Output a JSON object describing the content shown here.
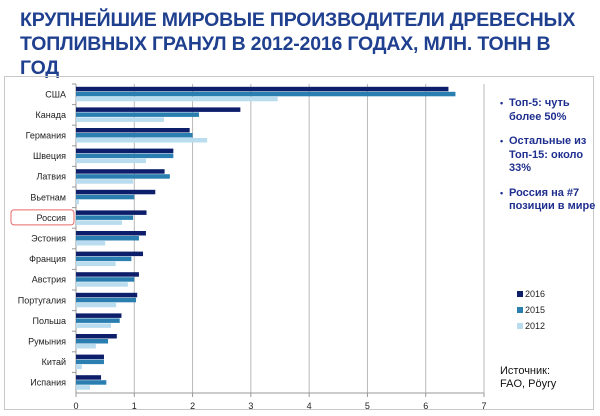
{
  "title": "КРУПНЕЙШИЕ МИРОВЫЕ ПРОИЗВОДИТЕЛИ ДРЕВЕСНЫХ ТОПЛИВНЫХ ГРАНУЛ В 2012-2016 ГОДАХ, МЛН. ТОНН В ГОД",
  "notes": [
    "Топ-5: чуть более 50%",
    "Остальные из Топ-15: около 33%",
    "Россия на #7 позиции в мире"
  ],
  "source": [
    "Источник:",
    "FAO, Pöyry"
  ],
  "chart_data": {
    "type": "bar",
    "orientation": "horizontal",
    "title": "КРУПНЕЙШИЕ МИРОВЫЕ ПРОИЗВОДИТЕЛИ ДРЕВЕСНЫХ ТОПЛИВНЫХ ГРАНУЛ В 2012-2016 ГОДАХ, МЛН. ТОНН В ГОД",
    "categories": [
      "США",
      "Канада",
      "Германия",
      "Швеция",
      "Латвия",
      "Вьетнам",
      "Россия",
      "Эстония",
      "Франция",
      "Австрия",
      "Португалия",
      "Польша",
      "Румыния",
      "Китай",
      "Испания"
    ],
    "highlight": "Россия",
    "series": [
      {
        "name": "2016",
        "color": "#0d1f6b",
        "values": [
          6.39,
          2.82,
          1.95,
          1.67,
          1.52,
          1.36,
          1.21,
          1.2,
          1.15,
          1.08,
          1.05,
          0.78,
          0.7,
          0.48,
          0.43
        ]
      },
      {
        "name": "2015",
        "color": "#2b7fb0",
        "values": [
          6.51,
          2.11,
          2.0,
          1.67,
          1.61,
          1.0,
          0.98,
          1.08,
          0.95,
          1.0,
          1.03,
          0.75,
          0.55,
          0.48,
          0.52
        ]
      },
      {
        "name": "2012",
        "color": "#b9dcee",
        "values": [
          3.46,
          1.51,
          2.25,
          1.2,
          0.98,
          0.05,
          0.79,
          0.5,
          0.68,
          0.89,
          0.69,
          0.6,
          0.34,
          0.1,
          0.24
        ]
      }
    ],
    "xlim": [
      0,
      7
    ],
    "xticks": [
      0,
      1,
      2,
      3,
      4,
      5,
      6,
      7
    ],
    "legend": "right",
    "grid": true
  }
}
